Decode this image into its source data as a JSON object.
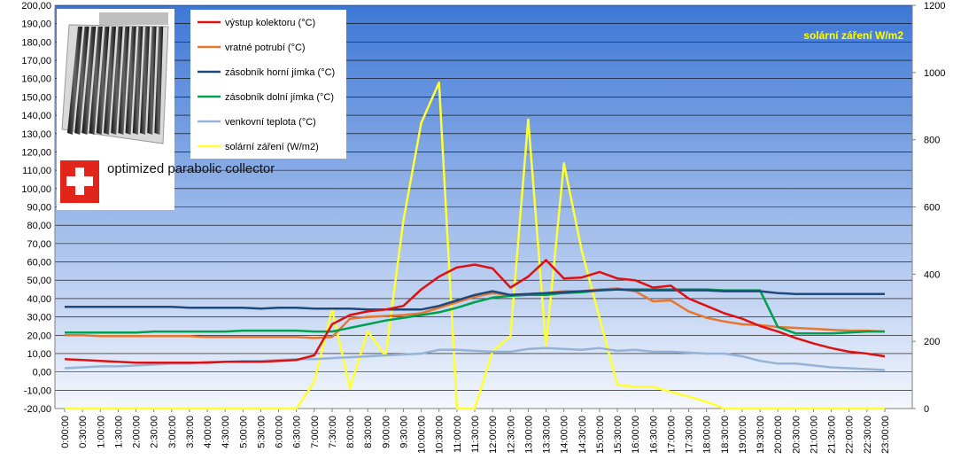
{
  "chart_data": {
    "type": "line",
    "title": "",
    "xlabel": "",
    "ylabel": "",
    "ylim": [
      -20,
      200
    ],
    "ylim_right": [
      0,
      1200
    ],
    "y_ticks": [
      "200,00",
      "190,00",
      "180,00",
      "170,00",
      "160,00",
      "150,00",
      "140,00",
      "130,00",
      "120,00",
      "110,00",
      "100,00",
      "90,00",
      "80,00",
      "70,00",
      "60,00",
      "50,00",
      "40,00",
      "30,00",
      "20,00",
      "10,00",
      "0,00",
      "-10,00",
      "-20,00"
    ],
    "y_right_ticks": [
      "1200",
      "1000",
      "800",
      "600",
      "400",
      "200",
      "0"
    ],
    "categories": [
      "0:00:00",
      "0:30:00",
      "1:00:00",
      "1:30:00",
      "2:00:00",
      "2:30:00",
      "3:00:00",
      "3:30:00",
      "4:00:00",
      "4:30:00",
      "5:00:00",
      "5:30:00",
      "6:00:00",
      "6:30:00",
      "7:00:00",
      "7:30:00",
      "8:00:00",
      "8:30:00",
      "9:00:00",
      "9:30:00",
      "10:00:00",
      "10:30:00",
      "11:00:00",
      "11:30:00",
      "12:00:00",
      "12:30:00",
      "13:00:00",
      "13:30:00",
      "14:00:00",
      "14:30:00",
      "15:00:00",
      "15:30:00",
      "16:00:00",
      "16:30:00",
      "17:00:00",
      "17:30:00",
      "18:00:00",
      "18:30:00",
      "19:00:00",
      "19:30:00",
      "20:00:00",
      "20:30:00",
      "21:00:00",
      "21:30:00",
      "22:00:00",
      "22:30:00",
      "23:00:00"
    ],
    "series": [
      {
        "name": "výstup kolektoru (°C)",
        "color": "#dd1111",
        "axis": "left",
        "values": [
          7,
          6.5,
          6,
          5.5,
          5,
          5,
          5,
          5,
          5,
          5.5,
          5.5,
          5.5,
          6,
          6.5,
          9,
          26,
          31,
          33,
          34,
          36,
          45,
          52,
          57,
          58.5,
          56.5,
          46,
          52,
          61,
          51,
          51.5,
          54.5,
          51,
          50,
          46,
          47,
          40,
          36,
          32,
          29,
          25,
          22,
          18.5,
          15.5,
          13,
          11,
          10,
          8.5
        ]
      },
      {
        "name": "vratné potrubí (°C)",
        "color": "#e8762d",
        "axis": "left",
        "values": [
          20,
          20,
          19.5,
          19.5,
          19.5,
          19.5,
          19.5,
          19.5,
          19,
          19,
          19,
          19,
          19,
          19,
          18.5,
          19,
          29,
          30,
          30.5,
          31,
          32,
          35,
          38,
          41,
          43,
          42,
          42.5,
          43,
          44,
          44,
          45,
          45.5,
          44,
          38.5,
          39,
          33,
          29.5,
          27.5,
          26,
          25.5,
          24.5,
          24,
          23.5,
          23,
          22.5,
          22.5,
          22
        ]
      },
      {
        "name": "zásobník horní jímka (°C)",
        "color": "#1f497d",
        "axis": "left",
        "values": [
          35.5,
          35.5,
          35.5,
          35.5,
          35.5,
          35.5,
          35.5,
          35,
          35,
          35,
          35,
          34.5,
          35,
          35,
          34.5,
          34.5,
          34.5,
          34,
          34,
          34,
          34,
          36,
          39,
          42,
          44,
          42,
          42.5,
          43,
          43.5,
          44,
          44.5,
          45,
          44.5,
          44.5,
          44.5,
          44.5,
          44.5,
          44,
          44,
          44,
          43,
          42.5,
          42.5,
          42.5,
          42.5,
          42.5,
          42.5
        ]
      },
      {
        "name": "zásobník dolní jímka (°C)",
        "color": "#00a050",
        "axis": "left",
        "values": [
          21.5,
          21.5,
          21.5,
          21.5,
          21.5,
          22,
          22,
          22,
          22,
          22,
          22.5,
          22.5,
          22.5,
          22.5,
          22,
          22,
          24,
          26,
          28,
          29.5,
          31,
          32.5,
          35,
          38,
          40.5,
          41.5,
          42,
          42,
          43,
          43.5,
          44.5,
          45,
          45,
          45,
          45,
          45,
          45,
          44.5,
          44.5,
          44.5,
          24.5,
          21,
          21,
          21,
          21.5,
          22,
          22
        ]
      },
      {
        "name": "venkovní teplota (°C)",
        "color": "#95b3d7",
        "axis": "left",
        "values": [
          2,
          2.5,
          3,
          3,
          3.5,
          4,
          4.5,
          4.5,
          5.5,
          5.5,
          6,
          6,
          6.5,
          7,
          7,
          7.5,
          8,
          8.5,
          9,
          9.5,
          10,
          12,
          12,
          11.5,
          11,
          11,
          12.5,
          13,
          12.5,
          12,
          13,
          11.5,
          12,
          11,
          11,
          10.5,
          10,
          10,
          8.5,
          6,
          4.5,
          4.5,
          3.5,
          2.5,
          2,
          1.5,
          1
        ]
      },
      {
        "name": "solární záření (W/m2)",
        "color": "#ffff33",
        "axis": "right",
        "values": [
          0,
          0,
          0,
          0,
          0,
          0,
          0,
          0,
          0,
          0,
          0,
          0,
          0,
          0,
          80,
          295,
          60,
          230,
          155,
          560,
          850,
          970,
          0,
          0,
          170,
          215,
          860,
          185,
          730,
          470,
          270,
          70,
          65,
          65,
          50,
          35,
          20,
          0,
          0,
          0,
          0,
          0,
          0,
          0,
          0,
          0,
          0
        ]
      }
    ],
    "legend_position": "top-left",
    "annotation": "solární záření W/m2",
    "inset_caption": "optimized parabolic collector"
  }
}
